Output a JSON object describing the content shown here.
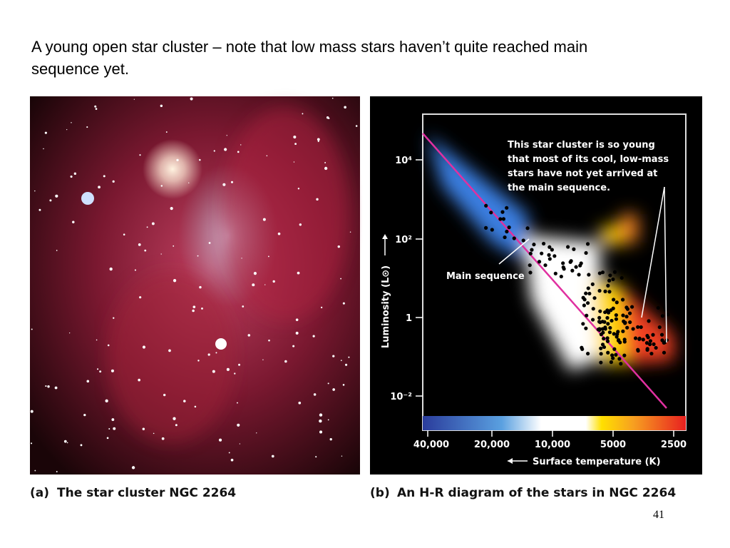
{
  "slide": {
    "title_lines": [
      "A young open star cluster – note that low mass stars haven’t quite reached main",
      "sequence yet."
    ],
    "page_number": "41"
  },
  "panel_a": {
    "caption_letter": "(a)",
    "caption": "The star cluster NGC 2264"
  },
  "panel_b": {
    "caption_letter": "(b)",
    "caption": "An H-R diagram of the stars in NGC 2264",
    "y_axis_label": "Luminosity (L⊙)",
    "x_axis_label": "Surface temperature (K)",
    "y_ticks": [
      "10⁴",
      "10²",
      "1",
      "10⁻²"
    ],
    "x_ticks": [
      "40,000",
      "20,000",
      "10,000",
      "5000",
      "2500"
    ],
    "annotation_lines": [
      "This star cluster is so young",
      "that most of its cool, low-mass",
      "stars have not yet arrived at",
      "the main sequence."
    ],
    "main_sequence_label": "Main sequence"
  }
}
